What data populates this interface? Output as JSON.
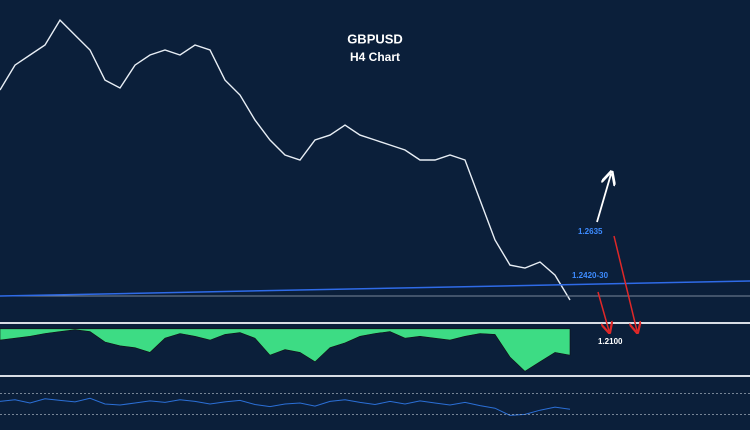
{
  "chart_data": [
    {
      "type": "line",
      "title": "GBPUSD",
      "subtitle": "H4 Chart",
      "categories": [
        null,
        null,
        null,
        null,
        null,
        null,
        null,
        null,
        null,
        null,
        null,
        null,
        null,
        null,
        null,
        null,
        null,
        null,
        null,
        null,
        null,
        null,
        null,
        null,
        null,
        null,
        null,
        null,
        null,
        null,
        null,
        null,
        null,
        null,
        null,
        null,
        null,
        null,
        null
      ],
      "series": [
        {
          "color": "#e8eef5",
          "values": [
            1.3555,
            1.37,
            1.3759,
            1.3817,
            1.3962,
            1.3875,
            1.3788,
            1.3613,
            1.3567,
            1.37,
            1.3759,
            1.3788,
            1.3759,
            1.3817,
            1.3788,
            1.3613,
            1.3526,
            1.338,
            1.3264,
            1.3177,
            1.3148,
            1.3264,
            1.3293,
            1.3351,
            1.3293,
            1.3264,
            1.3235,
            1.3206,
            1.3148,
            1.3148,
            1.3177,
            1.3148,
            1.2915,
            1.2682,
            1.2536,
            1.2519,
            1.2554,
            1.2478,
            1.2333
          ]
        }
      ],
      "ylim": [
        1.2205,
        1.4079
      ],
      "annotations": [
        "1.2635",
        "1.2420-30",
        "1.2100"
      ]
    },
    {
      "type": "area",
      "categories": [
        null,
        null,
        null,
        null,
        null,
        null,
        null,
        null,
        null,
        null,
        null,
        null,
        null,
        null,
        null,
        null,
        null,
        null,
        null,
        null,
        null,
        null,
        null,
        null,
        null,
        null,
        null,
        null,
        null,
        null,
        null,
        null,
        null,
        null,
        null,
        null,
        null,
        null,
        null
      ],
      "series": [
        {
          "color": "#3ddc84",
          "values": [
            -12,
            -10,
            -8,
            -5,
            -3,
            -1,
            -3,
            -14,
            -18,
            -20,
            -25,
            -10,
            -5,
            -8,
            -12,
            -6,
            -4,
            -10,
            -28,
            -22,
            -25,
            -35,
            -20,
            -15,
            -8,
            -5,
            -3,
            -10,
            -8,
            -10,
            -12,
            -8,
            -5,
            -6,
            -30,
            -45,
            -35,
            -25,
            -28
          ]
        }
      ],
      "ylim": [
        -50,
        4
      ]
    },
    {
      "type": "line",
      "categories": [
        null,
        null,
        null,
        null,
        null,
        null,
        null,
        null,
        null,
        null,
        null,
        null,
        null,
        null,
        null,
        null,
        null,
        null,
        null,
        null,
        null,
        null,
        null,
        null,
        null,
        null,
        null,
        null,
        null,
        null,
        null,
        null,
        null,
        null,
        null,
        null,
        null,
        null,
        null
      ],
      "series": [
        {
          "color": "#2b6fd6",
          "values": [
            55,
            58,
            52,
            60,
            57,
            54,
            61,
            50,
            48,
            52,
            56,
            53,
            58,
            55,
            50,
            54,
            57,
            49,
            45,
            50,
            52,
            46,
            55,
            58,
            53,
            49,
            55,
            50,
            56,
            52,
            48,
            53,
            47,
            42,
            28,
            30,
            38,
            44,
            40
          ]
        }
      ],
      "ylim": [
        0,
        100
      ],
      "yticks": [
        70,
        30
      ]
    }
  ]
}
